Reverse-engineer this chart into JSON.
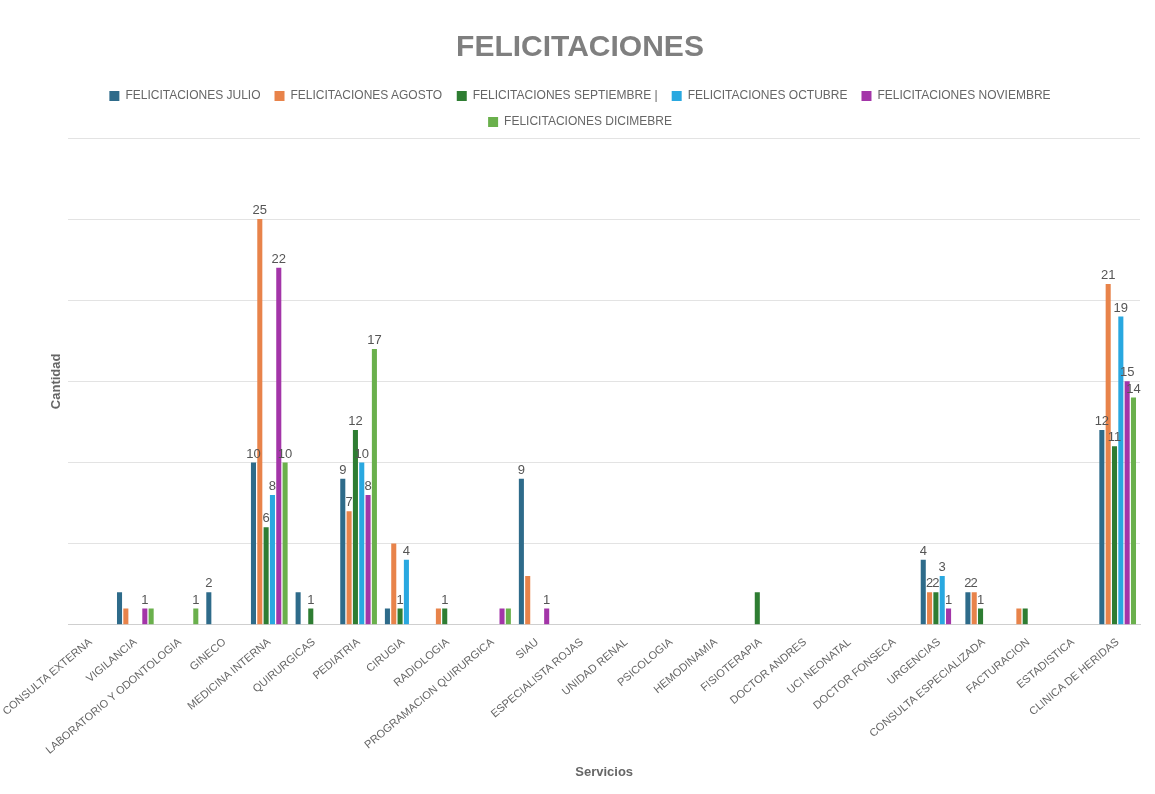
{
  "chart_data": {
    "type": "bar",
    "title": "FELICITACIONES",
    "xlabel": "Servicios",
    "ylabel": "Cantidad",
    "categories": [
      "CONSULTA EXTERNA",
      "VIGILANCIA",
      "LABORATORIO Y ODONTOLOGIA",
      "GINECO",
      "MEDICINA INTERNA",
      "QUIRURGICAS",
      "PEDIATRIA",
      "CIRUGIA",
      "RADIOLOGIA",
      "PROGRAMACION QUIRURGICA",
      "SIAU",
      "ESPECIALISTA ROJAS",
      "UNIDAD RENAL",
      "PSICOLOGIA",
      "HEMODINAMIA",
      "FISIOTERAPIA",
      "DOCTOR ANDRES",
      "UCI NEONATAL",
      "DOCTOR FONSECA",
      "URGENCIAS",
      "CONSULTA ESPECIALIZADA",
      "FACTURACION",
      "ESTADISTICA",
      "CLINICA DE HERIDAS"
    ],
    "series": [
      {
        "name": "FELICITACIONES JULIO",
        "color": "#2e6b8a",
        "values": [
          0,
          2,
          0,
          2,
          10,
          2,
          9,
          1,
          0,
          0,
          9,
          0,
          0,
          0,
          0,
          0,
          0,
          0,
          0,
          4,
          2,
          0,
          0,
          12
        ],
        "value_labels": [
          null,
          null,
          null,
          "2",
          "10",
          null,
          "9",
          null,
          null,
          null,
          "9",
          null,
          null,
          null,
          null,
          null,
          null,
          null,
          null,
          "4",
          "2",
          null,
          null,
          "12"
        ]
      },
      {
        "name": "FELICITACIONES AGOSTO",
        "color": "#e8834a",
        "values": [
          0,
          1,
          0,
          0,
          25,
          0,
          7,
          5,
          1,
          0,
          3,
          0,
          0,
          0,
          0,
          0,
          0,
          0,
          0,
          2,
          2,
          1,
          0,
          21
        ],
        "value_labels": [
          null,
          null,
          null,
          null,
          "25",
          null,
          "7",
          null,
          null,
          null,
          null,
          null,
          null,
          null,
          null,
          null,
          null,
          null,
          null,
          "2",
          "2",
          null,
          null,
          "21"
        ]
      },
      {
        "name": "FELICITACIONES SEPTIEMBRE |",
        "color": "#2e7d32",
        "values": [
          0,
          0,
          0,
          0,
          6,
          1,
          12,
          1,
          1,
          0,
          0,
          0,
          0,
          0,
          0,
          2,
          0,
          0,
          0,
          2,
          1,
          1,
          0,
          11
        ],
        "value_labels": [
          null,
          null,
          null,
          null,
          "6",
          "1",
          "12",
          "1",
          "1",
          null,
          null,
          null,
          null,
          null,
          null,
          null,
          null,
          null,
          null,
          "2",
          "1",
          null,
          null,
          "11"
        ]
      },
      {
        "name": "FELICITACIONES OCTUBRE",
        "color": "#29a8e0",
        "values": [
          0,
          0,
          0,
          0,
          8,
          0,
          10,
          4,
          0,
          0,
          0,
          0,
          0,
          0,
          0,
          0,
          0,
          0,
          0,
          3,
          0,
          0,
          0,
          19
        ],
        "value_labels": [
          null,
          null,
          null,
          null,
          "8",
          null,
          "10",
          "4",
          null,
          null,
          null,
          null,
          null,
          null,
          null,
          null,
          null,
          null,
          null,
          "3",
          null,
          null,
          null,
          "19"
        ]
      },
      {
        "name": "FELICITACIONES NOVIEMBRE",
        "color": "#a335a8",
        "values": [
          0,
          1,
          0,
          0,
          22,
          0,
          8,
          0,
          0,
          1,
          1,
          0,
          0,
          0,
          0,
          0,
          0,
          0,
          0,
          1,
          0,
          0,
          0,
          15
        ],
        "value_labels": [
          null,
          "1",
          null,
          null,
          "22",
          null,
          "8",
          null,
          null,
          null,
          "1",
          null,
          null,
          null,
          null,
          null,
          null,
          null,
          null,
          "1",
          null,
          null,
          null,
          "15"
        ]
      },
      {
        "name": "FELICITACIONES DICIMEBRE",
        "color": "#6ab04c",
        "values": [
          0,
          1,
          1,
          0,
          10,
          0,
          17,
          0,
          0,
          1,
          0,
          0,
          0,
          0,
          0,
          0,
          0,
          0,
          0,
          0,
          0,
          0,
          0,
          14
        ],
        "value_labels": [
          null,
          null,
          "1",
          null,
          "10",
          null,
          "17",
          null,
          null,
          null,
          null,
          null,
          null,
          null,
          null,
          null,
          null,
          null,
          null,
          null,
          null,
          null,
          null,
          "14"
        ]
      }
    ],
    "ylim": [
      0,
      30
    ],
    "yticks": [
      {
        "value": 0,
        "label": null
      },
      {
        "value": 5,
        "label": null
      },
      {
        "value": 10,
        "label": null
      },
      {
        "value": 15,
        "label": null
      },
      {
        "value": 20,
        "label": null
      },
      {
        "value": 25,
        "label": null
      },
      {
        "value": 30,
        "label": null
      }
    ],
    "tick_labels": "x",
    "grid": "y",
    "legend": "top"
  }
}
